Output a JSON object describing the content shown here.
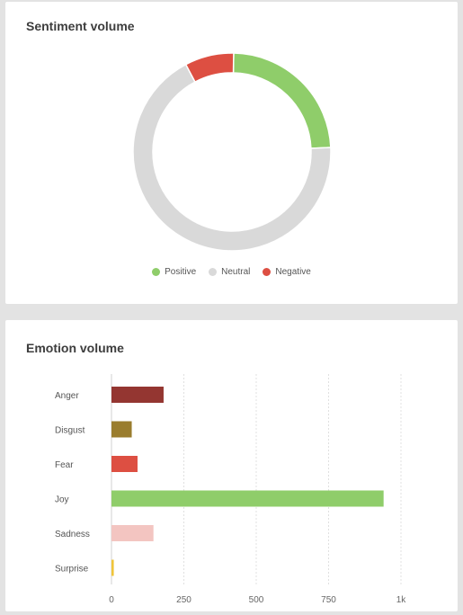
{
  "sentiment": {
    "title": "Sentiment volume",
    "chart_data": {
      "type": "pie",
      "categories": [
        "Positive",
        "Neutral",
        "Negative"
      ],
      "values": [
        24,
        68,
        8
      ],
      "colors": [
        "#8fcd6a",
        "#d9d9d9",
        "#dd4f42"
      ],
      "legend_position": "bottom"
    }
  },
  "emotion": {
    "title": "Emotion volume",
    "chart_data": {
      "type": "bar",
      "orientation": "horizontal",
      "categories": [
        "Anger",
        "Disgust",
        "Fear",
        "Joy",
        "Sadness",
        "Surprise"
      ],
      "values": [
        180,
        70,
        90,
        940,
        145,
        8
      ],
      "colors": [
        "#943631",
        "#9a7d2e",
        "#dd4f42",
        "#8fcd6a",
        "#f3c5c1",
        "#f0c53a"
      ],
      "xlim": [
        0,
        1000
      ],
      "ticks": [
        0,
        250,
        500,
        750,
        1000
      ],
      "tick_labels": [
        "0",
        "250",
        "500",
        "750",
        "1k"
      ],
      "grid": true
    }
  }
}
